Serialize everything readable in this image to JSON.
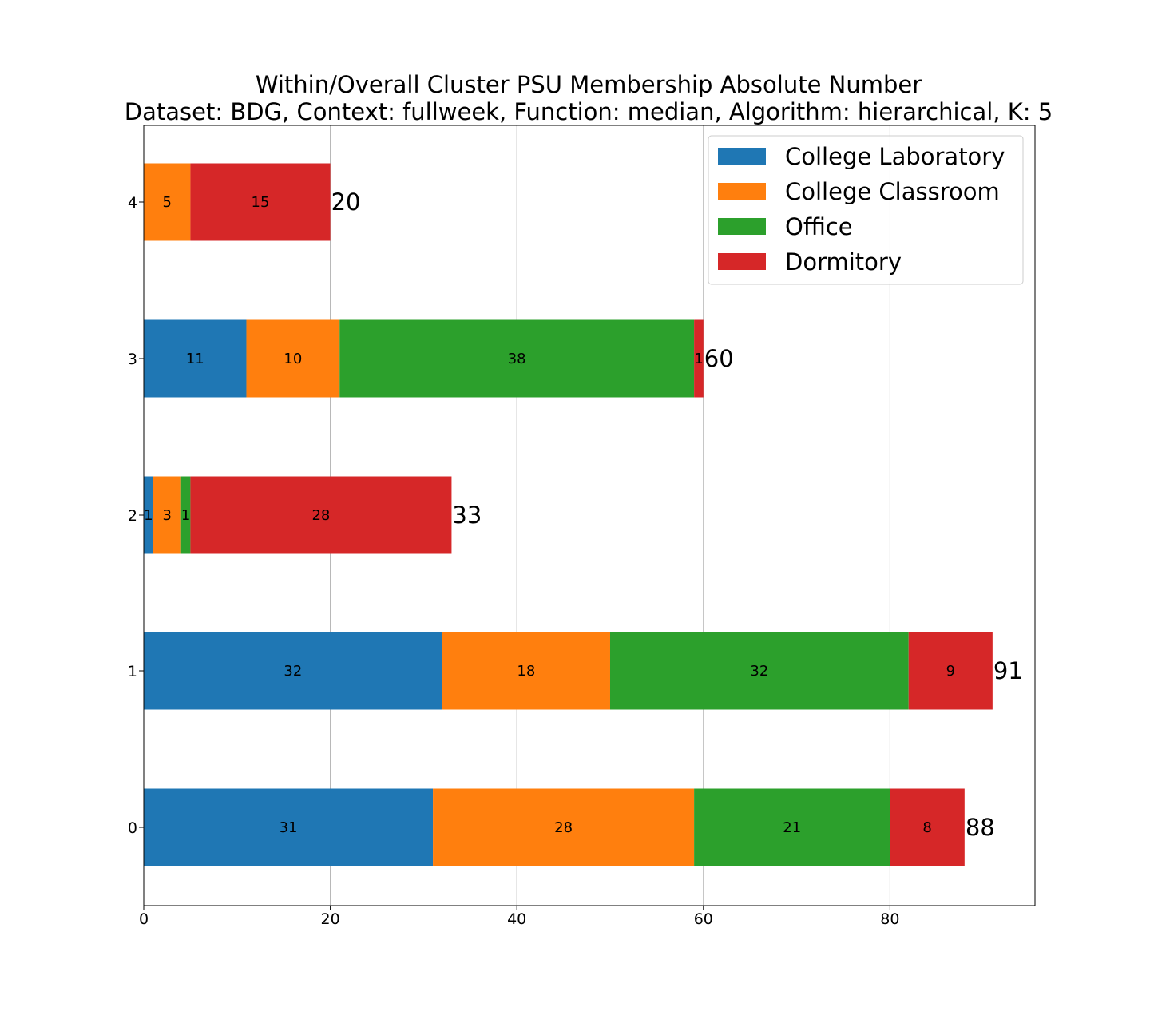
{
  "chart_data": {
    "type": "bar",
    "orientation": "horizontal",
    "stacked": true,
    "title": "Within/Overall Cluster PSU Membership Absolute Number",
    "subtitle": "Dataset: BDG, Context: fullweek, Function: median, Algorithm: hierarchical, K: 5",
    "xlabel": "",
    "ylabel": "",
    "categories": [
      "0",
      "1",
      "2",
      "3",
      "4"
    ],
    "series": [
      {
        "name": "College Laboratory",
        "color": "#1f77b4",
        "values": [
          31,
          32,
          1,
          11,
          0
        ]
      },
      {
        "name": "College Classroom",
        "color": "#ff7f0e",
        "values": [
          28,
          18,
          3,
          10,
          5
        ]
      },
      {
        "name": "Office",
        "color": "#2ca02c",
        "values": [
          21,
          32,
          1,
          38,
          0
        ]
      },
      {
        "name": "Dormitory",
        "color": "#d62728",
        "values": [
          8,
          9,
          28,
          1,
          15
        ]
      }
    ],
    "totals": [
      88,
      91,
      33,
      60,
      20
    ],
    "xlim": [
      0,
      95.55
    ],
    "xticks": [
      "0",
      "20",
      "40",
      "60",
      "80"
    ],
    "grid": "vertical",
    "legend_position": "top-right"
  }
}
